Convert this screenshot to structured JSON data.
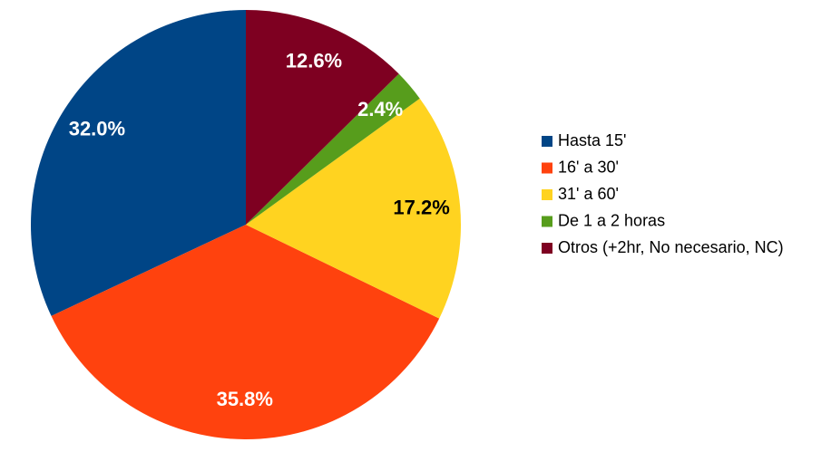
{
  "chart_data": {
    "type": "pie",
    "categories": [
      "Hasta 15'",
      "16' a 30'",
      "31' a 60'",
      "De 1 a 2 horas",
      "Otros (+2hr, No necesario, NC)"
    ],
    "values": [
      32.0,
      35.8,
      17.2,
      2.4,
      12.6
    ],
    "value_labels": [
      "32.0%",
      "35.8%",
      "17.2%",
      "2.4%",
      "12.6%"
    ],
    "colors": [
      "#004586",
      "#ff420e",
      "#ffd320",
      "#579d1c",
      "#7e0021"
    ],
    "label_colors": [
      "#ffffff",
      "#ffffff",
      "#000000",
      "#ffffff",
      "#ffffff"
    ],
    "legend": "right"
  }
}
